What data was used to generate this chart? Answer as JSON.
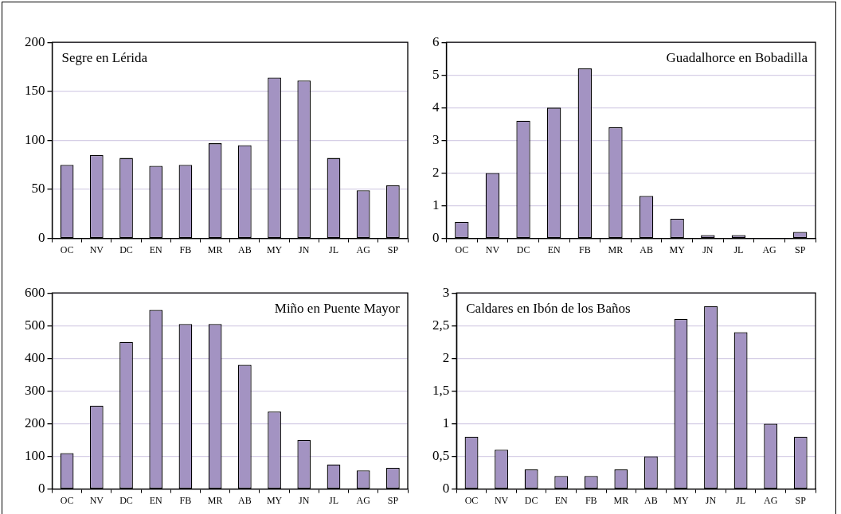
{
  "chart_data": [
    {
      "type": "bar",
      "title": "Segre en Lérida",
      "categories": [
        "OC",
        "NV",
        "DC",
        "EN",
        "FB",
        "MR",
        "AB",
        "MY",
        "JN",
        "JL",
        "AG",
        "SP"
      ],
      "values": [
        75,
        85,
        82,
        74,
        75,
        97,
        95,
        164,
        161,
        82,
        49,
        54
      ],
      "color": "#a393c2",
      "ylim": [
        0,
        200
      ],
      "yticks": [
        0,
        50,
        100,
        150,
        200
      ],
      "grid": "y"
    },
    {
      "type": "bar",
      "title": "Guadalhorce en Bobadilla",
      "categories": [
        "OC",
        "NV",
        "DC",
        "EN",
        "FB",
        "MR",
        "AB",
        "MY",
        "JN",
        "JL",
        "AG",
        "SP"
      ],
      "values": [
        0.5,
        2,
        3.6,
        4,
        5.2,
        3.4,
        1.3,
        0.6,
        0.1,
        0.1,
        0,
        0.2
      ],
      "color": "#a393c2",
      "ylim": [
        0,
        6
      ],
      "yticks": [
        0,
        1,
        2,
        3,
        4,
        5,
        6
      ],
      "grid": "y"
    },
    {
      "type": "bar",
      "title": "Miño en Puente Mayor",
      "categories": [
        "OC",
        "NV",
        "DC",
        "EN",
        "FB",
        "MR",
        "AB",
        "MY",
        "JN",
        "JL",
        "AG",
        "SP"
      ],
      "values": [
        110,
        255,
        450,
        548,
        505,
        505,
        380,
        237,
        150,
        75,
        57,
        65
      ],
      "color": "#a393c2",
      "ylim": [
        0,
        600
      ],
      "yticks": [
        0,
        100,
        200,
        300,
        400,
        500,
        600
      ],
      "grid": "y"
    },
    {
      "type": "bar",
      "title": "Caldares en Ibón de los Baños",
      "categories": [
        "OC",
        "NV",
        "DC",
        "EN",
        "FB",
        "MR",
        "AB",
        "MY",
        "JN",
        "JL",
        "AG",
        "SP"
      ],
      "values": [
        0.8,
        0.6,
        0.3,
        0.2,
        0.2,
        0.3,
        0.5,
        2.6,
        2.8,
        2.4,
        1,
        0.8
      ],
      "color": "#a393c2",
      "ylim": [
        0,
        3
      ],
      "yticks": [
        0,
        {
          "value": 0.5,
          "label": "0,5"
        },
        1,
        {
          "value": 1.5,
          "label": "1,5"
        },
        2,
        {
          "value": 2.5,
          "label": "2,5"
        },
        3
      ],
      "grid": "y"
    }
  ]
}
